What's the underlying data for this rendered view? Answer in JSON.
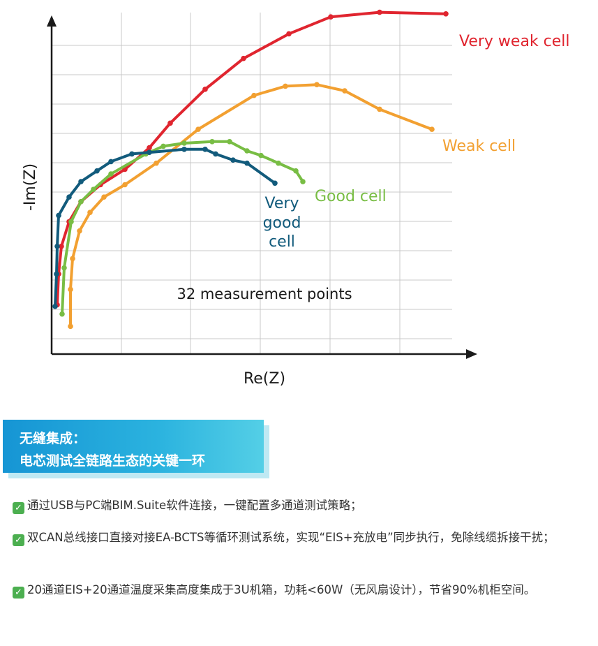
{
  "chart_data": {
    "type": "line",
    "xlabel": "Re(Z)",
    "ylabel": "-Im(Z)",
    "annotation": "32 measurement points",
    "grid": true,
    "xlim": [
      0,
      6
    ],
    "ylim": [
      0,
      11
    ],
    "series": [
      {
        "name": "Very weak cell",
        "color": "#e0252f",
        "x": [
          0.08,
          0.1,
          0.14,
          0.25,
          0.42,
          0.7,
          1.05,
          1.4,
          1.7,
          2.2,
          2.75,
          3.4,
          4.0,
          4.7,
          5.65
        ],
        "y": [
          1.6,
          2.6,
          3.5,
          4.3,
          4.95,
          5.5,
          6.0,
          6.7,
          7.5,
          8.6,
          9.6,
          10.4,
          10.95,
          11.1,
          11.05
        ]
      },
      {
        "name": "Weak cell",
        "color": "#f2a031",
        "x": [
          0.27,
          0.27,
          0.3,
          0.4,
          0.55,
          0.75,
          1.05,
          1.5,
          2.1,
          2.9,
          3.35,
          3.8,
          4.2,
          4.7,
          5.45
        ],
        "y": [
          0.9,
          2.1,
          3.1,
          4.0,
          4.6,
          5.1,
          5.5,
          6.2,
          7.3,
          8.4,
          8.7,
          8.75,
          8.55,
          7.95,
          7.3
        ]
      },
      {
        "name": "Good cell",
        "color": "#78bd44",
        "x": [
          0.15,
          0.18,
          0.28,
          0.42,
          0.6,
          0.85,
          1.35,
          1.6,
          1.9,
          2.3,
          2.55,
          2.8,
          3.0,
          3.25,
          3.5,
          3.6
        ],
        "y": [
          1.3,
          2.8,
          4.3,
          4.95,
          5.35,
          5.85,
          6.5,
          6.75,
          6.85,
          6.9,
          6.9,
          6.6,
          6.45,
          6.2,
          5.95,
          5.6
        ]
      },
      {
        "name": "Very good cell",
        "color": "#125b7c",
        "x": [
          0.05,
          0.07,
          0.08,
          0.1,
          0.25,
          0.42,
          0.65,
          0.85,
          1.15,
          1.4,
          1.9,
          2.2,
          2.35,
          2.6,
          2.8,
          3.2
        ],
        "y": [
          1.55,
          2.6,
          3.5,
          4.5,
          5.1,
          5.6,
          5.95,
          6.25,
          6.5,
          6.55,
          6.65,
          6.65,
          6.5,
          6.3,
          6.2,
          5.55
        ]
      }
    ],
    "labels": {
      "very_weak": "Very weak cell",
      "weak": "Weak cell",
      "good": "Good cell",
      "very_good_1": "Very",
      "very_good_2": "good",
      "very_good_3": "cell"
    }
  },
  "banner": {
    "line1": "无缝集成：",
    "line2": "电芯测试全链路生态的关键一环"
  },
  "bullets": [
    "通过USB与PC端BIM.Suite软件连接，一键配置多通道测试策略；",
    "双CAN总线接口直接对接EA-BCTS等循环测试系统，实现“EIS+充放电”同步执行，免除线缆拆接干扰；",
    "20通道EIS+20通道温度采集高度集成于3U机箱，功耗<60W（无风扇设计），节省90%机柜空间。"
  ],
  "icons": {
    "check": "check-icon"
  }
}
